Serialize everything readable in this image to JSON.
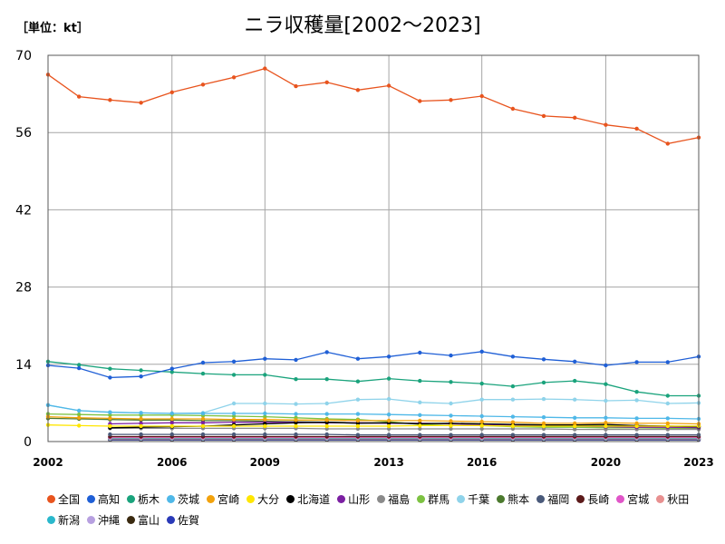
{
  "unit_label": "［単位：kt］",
  "title": "ニラ収穫量[2002～2023]",
  "chart_data": {
    "type": "line",
    "title": "ニラ収穫量[2002～2023]",
    "unit": "［単位：kt］",
    "ylim": [
      0,
      70
    ],
    "yticks": [
      "0",
      "14",
      "28",
      "42",
      "56",
      "70"
    ],
    "xlim": [
      2002,
      2023
    ],
    "xticks": [
      "2002",
      "2006",
      "2009",
      "2013",
      "2016",
      "2020",
      "2023"
    ],
    "grid": true,
    "legend_position": "bottom",
    "x": [
      2002,
      2003,
      2004,
      2005,
      2006,
      2007,
      2008,
      2009,
      2010,
      2011,
      2012,
      2013,
      2014,
      2015,
      2016,
      2017,
      2018,
      2019,
      2020,
      2021,
      2022,
      2023
    ],
    "series": [
      {
        "name": "全国",
        "color": "#e8541e",
        "values": [
          66.5,
          62.5,
          61.9,
          61.4,
          63.3,
          64.7,
          66.0,
          67.6,
          64.4,
          65.1,
          63.7,
          64.5,
          61.7,
          61.9,
          62.6,
          60.3,
          59.0,
          58.7,
          57.4,
          56.7,
          54.0,
          55.1
        ]
      },
      {
        "name": "高知",
        "color": "#1f5fd6",
        "values": [
          13.8,
          13.3,
          11.6,
          11.8,
          13.2,
          14.3,
          14.5,
          15.0,
          14.8,
          16.2,
          15.0,
          15.4,
          16.1,
          15.6,
          16.3,
          15.4,
          14.9,
          14.5,
          13.8,
          14.4,
          14.4,
          15.4
        ]
      },
      {
        "name": "栃木",
        "color": "#1aa37c",
        "values": [
          14.5,
          13.9,
          13.2,
          12.9,
          12.6,
          12.3,
          12.1,
          12.1,
          11.3,
          11.3,
          10.9,
          11.4,
          11.0,
          10.8,
          10.5,
          10.0,
          10.7,
          11.0,
          10.4,
          9.0,
          8.3,
          8.3
        ]
      },
      {
        "name": "茨城",
        "color": "#4fb8e8",
        "values": [
          6.6,
          5.6,
          5.3,
          5.2,
          5.1,
          5.1,
          5.1,
          5.1,
          5.0,
          5.0,
          5.0,
          4.9,
          4.8,
          4.7,
          4.6,
          4.5,
          4.4,
          4.3,
          4.3,
          4.2,
          4.2,
          4.1
        ]
      },
      {
        "name": "宮崎",
        "color": "#f2a20c",
        "values": [
          4.5,
          4.3,
          4.2,
          4.1,
          4.1,
          4.1,
          4.0,
          4.0,
          3.9,
          3.9,
          3.8,
          3.8,
          3.8,
          3.7,
          3.6,
          3.5,
          3.3,
          3.3,
          3.4,
          3.3,
          3.3,
          3.2
        ]
      },
      {
        "name": "大分",
        "color": "#ffe600",
        "values": [
          3.0,
          2.9,
          2.8,
          2.8,
          2.8,
          2.8,
          2.8,
          2.8,
          2.8,
          2.8,
          2.8,
          2.8,
          2.9,
          2.9,
          2.9,
          2.8,
          2.8,
          2.8,
          2.8,
          2.8,
          2.8,
          2.8
        ]
      },
      {
        "name": "北海道",
        "color": "#000000",
        "values": [
          null,
          null,
          2.5,
          2.6,
          2.7,
          2.8,
          3.0,
          3.2,
          3.4,
          3.5,
          3.3,
          3.4,
          3.2,
          3.3,
          3.2,
          3.1,
          3.0,
          3.0,
          3.1,
          2.9,
          2.8,
          2.7
        ]
      },
      {
        "name": "山形",
        "color": "#7b1fa2",
        "values": [
          null,
          null,
          3.2,
          3.3,
          3.4,
          3.4,
          3.5,
          3.5,
          3.5,
          3.4,
          3.4,
          3.3,
          3.3,
          3.2,
          3.1,
          3.0,
          2.9,
          2.8,
          2.7,
          2.6,
          2.6,
          2.5
        ]
      },
      {
        "name": "福島",
        "color": "#8a8a8a",
        "values": [
          null,
          null,
          2.4,
          2.4,
          2.4,
          2.4,
          2.4,
          2.4,
          2.4,
          2.3,
          2.3,
          2.3,
          2.3,
          2.3,
          2.3,
          2.3,
          2.3,
          2.2,
          2.2,
          2.2,
          2.2,
          2.2
        ]
      },
      {
        "name": "群馬",
        "color": "#7dc242",
        "values": [
          5.0,
          4.9,
          4.8,
          4.8,
          4.8,
          4.7,
          4.6,
          4.5,
          4.3,
          4.1,
          4.0,
          3.6,
          3.1,
          2.9,
          2.9,
          2.7,
          2.6,
          2.6,
          2.5,
          2.5,
          2.4,
          2.4
        ]
      },
      {
        "name": "千葉",
        "color": "#8fd3ea",
        "values": [
          6.6,
          5.6,
          5.3,
          5.2,
          5.1,
          5.2,
          6.9,
          6.9,
          6.8,
          6.9,
          7.6,
          7.7,
          7.1,
          6.9,
          7.6,
          7.6,
          7.7,
          7.6,
          7.4,
          7.5,
          6.9,
          7.0
        ]
      },
      {
        "name": "熊本",
        "color": "#4c7a2e",
        "values": [
          4.2,
          4.1,
          4.0,
          3.9,
          3.9,
          3.8,
          3.8,
          3.7,
          3.6,
          3.5,
          3.4,
          3.4,
          3.3,
          3.3,
          3.2,
          3.1,
          3.0,
          3.0,
          2.9,
          2.9,
          2.8,
          2.8
        ]
      },
      {
        "name": "福岡",
        "color": "#4a5a7a",
        "values": [
          null,
          null,
          1.3,
          1.3,
          1.3,
          1.3,
          1.3,
          1.3,
          1.3,
          1.3,
          1.2,
          1.2,
          1.2,
          1.2,
          1.2,
          1.2,
          1.2,
          1.2,
          1.2,
          1.2,
          1.2,
          1.2
        ]
      },
      {
        "name": "長崎",
        "color": "#5c1a1a",
        "values": [
          null,
          null,
          0.9,
          0.9,
          0.9,
          0.9,
          0.9,
          0.9,
          0.9,
          0.9,
          0.9,
          0.9,
          0.9,
          0.9,
          0.9,
          0.9,
          0.9,
          0.9,
          0.9,
          0.9,
          0.9,
          0.9
        ]
      },
      {
        "name": "宮城",
        "color": "#e055c8",
        "values": [
          null,
          null,
          0.8,
          0.8,
          0.8,
          0.8,
          0.8,
          0.8,
          0.8,
          0.8,
          0.8,
          0.8,
          0.8,
          0.8,
          0.8,
          0.8,
          0.8,
          0.8,
          0.8,
          0.8,
          0.8,
          0.8
        ]
      },
      {
        "name": "秋田",
        "color": "#e89090",
        "values": [
          null,
          null,
          0.7,
          0.7,
          0.7,
          0.7,
          0.7,
          0.7,
          0.7,
          0.7,
          0.7,
          0.7,
          0.7,
          0.7,
          0.7,
          0.7,
          0.7,
          0.7,
          0.7,
          0.7,
          0.7,
          0.7
        ]
      },
      {
        "name": "新潟",
        "color": "#2ab8cc",
        "values": [
          null,
          null,
          0.6,
          0.6,
          0.6,
          0.6,
          0.6,
          0.6,
          0.6,
          0.6,
          0.6,
          0.6,
          0.6,
          0.6,
          0.6,
          0.6,
          0.6,
          0.6,
          0.6,
          0.6,
          0.6,
          0.6
        ]
      },
      {
        "name": "沖縄",
        "color": "#b7a0e0",
        "values": [
          null,
          null,
          0.5,
          0.5,
          0.5,
          0.5,
          0.5,
          0.5,
          0.5,
          0.5,
          0.5,
          0.5,
          0.5,
          0.5,
          0.5,
          0.5,
          0.5,
          0.5,
          0.5,
          0.5,
          0.5,
          0.5
        ]
      },
      {
        "name": "富山",
        "color": "#3a2a10",
        "values": [
          null,
          null,
          0.4,
          0.4,
          0.4,
          0.4,
          0.4,
          0.4,
          0.4,
          0.4,
          0.4,
          0.4,
          0.4,
          0.4,
          0.4,
          0.4,
          0.4,
          0.4,
          0.4,
          0.4,
          0.4,
          0.4
        ]
      },
      {
        "name": "佐賀",
        "color": "#2a3ab8",
        "values": [
          null,
          null,
          0.3,
          0.3,
          0.3,
          0.3,
          0.3,
          0.3,
          0.3,
          0.3,
          0.3,
          0.3,
          0.3,
          0.3,
          0.3,
          0.3,
          0.3,
          0.3,
          0.3,
          0.3,
          0.3,
          0.3
        ]
      }
    ]
  }
}
